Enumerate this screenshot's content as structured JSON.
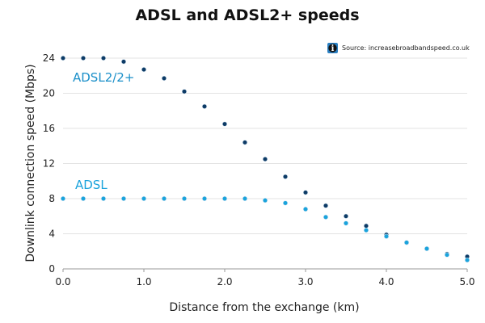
{
  "chart_data": {
    "type": "scatter",
    "title": "ADSL and ADSL2+ speeds",
    "xlabel": "Distance from the exchange (km)",
    "ylabel": "Downlink connection speed (Mbps)",
    "xlim": [
      0,
      5
    ],
    "ylim": [
      0,
      24
    ],
    "xticks": [
      "0.0",
      "1.0",
      "2.0",
      "3.0",
      "4.0",
      "5.0"
    ],
    "yticks": [
      "0",
      "4",
      "8",
      "12",
      "16",
      "20",
      "24"
    ],
    "grid": "horizontal",
    "source": "Source: increasebroadbandspeed.co.uk",
    "series": [
      {
        "name": "ADSL2/2+",
        "color": "#0d3b66",
        "points": [
          {
            "x": 0.0,
            "y": 24.0
          },
          {
            "x": 0.25,
            "y": 24.0
          },
          {
            "x": 0.5,
            "y": 24.0
          },
          {
            "x": 0.75,
            "y": 23.6
          },
          {
            "x": 1.0,
            "y": 22.7
          },
          {
            "x": 1.25,
            "y": 21.7
          },
          {
            "x": 1.5,
            "y": 20.2
          },
          {
            "x": 1.75,
            "y": 18.5
          },
          {
            "x": 2.0,
            "y": 16.5
          },
          {
            "x": 2.25,
            "y": 14.4
          },
          {
            "x": 2.5,
            "y": 12.5
          },
          {
            "x": 2.75,
            "y": 10.5
          },
          {
            "x": 3.0,
            "y": 8.7
          },
          {
            "x": 3.25,
            "y": 7.2
          },
          {
            "x": 3.5,
            "y": 6.0
          },
          {
            "x": 3.75,
            "y": 4.9
          },
          {
            "x": 4.0,
            "y": 3.9
          },
          {
            "x": 4.25,
            "y": 3.0
          },
          {
            "x": 4.5,
            "y": 2.3
          },
          {
            "x": 4.75,
            "y": 1.7
          },
          {
            "x": 5.0,
            "y": 1.4
          }
        ]
      },
      {
        "name": "ADSL",
        "color": "#1aa3dc",
        "points": [
          {
            "x": 0.0,
            "y": 8.0
          },
          {
            "x": 0.25,
            "y": 8.0
          },
          {
            "x": 0.5,
            "y": 8.0
          },
          {
            "x": 0.75,
            "y": 8.0
          },
          {
            "x": 1.0,
            "y": 8.0
          },
          {
            "x": 1.25,
            "y": 8.0
          },
          {
            "x": 1.5,
            "y": 8.0
          },
          {
            "x": 1.75,
            "y": 8.0
          },
          {
            "x": 2.0,
            "y": 8.0
          },
          {
            "x": 2.25,
            "y": 8.0
          },
          {
            "x": 2.5,
            "y": 7.8
          },
          {
            "x": 2.75,
            "y": 7.5
          },
          {
            "x": 3.0,
            "y": 6.8
          },
          {
            "x": 3.25,
            "y": 5.9
          },
          {
            "x": 3.5,
            "y": 5.2
          },
          {
            "x": 3.75,
            "y": 4.4
          },
          {
            "x": 4.0,
            "y": 3.7
          },
          {
            "x": 4.25,
            "y": 3.0
          },
          {
            "x": 4.5,
            "y": 2.3
          },
          {
            "x": 4.75,
            "y": 1.6
          },
          {
            "x": 5.0,
            "y": 1.0
          }
        ]
      }
    ]
  }
}
